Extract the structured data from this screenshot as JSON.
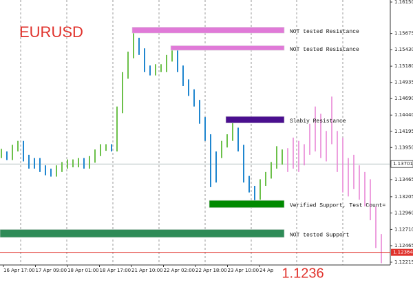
{
  "chart_data": {
    "type": "ohlc",
    "title": "EURUSD",
    "price_display": "1.1236",
    "ylim": [
      1.12173,
      1.16181
    ],
    "yticks": [
      {
        "value": 1.1615,
        "label": "1.16150"
      },
      1.15675,
      {
        "value": 1.1543,
        "label": "1.15430"
      },
      {
        "value": 1.1518,
        "label": "1.15180"
      },
      1.14935,
      {
        "value": 1.1469,
        "label": "1.14690"
      },
      {
        "value": 1.1444,
        "label": "1.14440"
      },
      1.14195,
      {
        "value": 1.1395,
        "label": "1.13950"
      },
      1.13465,
      1.13205,
      {
        "value": 1.1296,
        "label": "1.12960"
      },
      {
        "value": 1.1271,
        "label": "1.12710"
      },
      1.12465,
      1.12215
    ],
    "x_labels": [
      "16 Apr 17:00",
      "17 Apr 09:00",
      "18 Apr 01:00",
      "18 Apr 17:00",
      "21 Apr 10:00",
      "22 Apr 02:00",
      "22 Apr 18:00",
      "23 Apr 10:00",
      "24 Ap"
    ],
    "up_color": "#6cc04a",
    "down_color": "#1f86cf",
    "projection_color": "#e77fd2",
    "bars": {
      "high": [
        1.1393,
        1.1389,
        1.1399,
        1.1405,
        1.1405,
        1.1384,
        1.1379,
        1.1379,
        1.1368,
        1.1363,
        1.1368,
        1.1373,
        1.1377,
        1.1377,
        1.1379,
        1.1379,
        1.1382,
        1.1392,
        1.14,
        1.14,
        1.14,
        1.1457,
        1.1509,
        1.154,
        1.157,
        1.1561,
        1.1545,
        1.1519,
        1.1521,
        1.1521,
        1.1535,
        1.1545,
        1.1542,
        1.1519,
        1.1498,
        1.1483,
        1.1467,
        1.1441,
        1.1415,
        1.1389,
        1.1405,
        1.1415,
        1.1432,
        1.1425,
        1.1399,
        1.1352,
        1.1337,
        1.1347,
        1.1358,
        1.1373,
        1.1397,
        1.1392
      ],
      "low": [
        1.1379,
        1.1376,
        1.1376,
        1.1389,
        1.1374,
        1.1363,
        1.1363,
        1.1358,
        1.1353,
        1.1351,
        1.1351,
        1.1358,
        1.1363,
        1.1365,
        1.1365,
        1.1363,
        1.1363,
        1.1372,
        1.1382,
        1.139,
        1.1389,
        1.1389,
        1.1447,
        1.1499,
        1.153,
        1.1535,
        1.1509,
        1.1504,
        1.1504,
        1.1509,
        1.1509,
        1.1525,
        1.1509,
        1.1488,
        1.1473,
        1.1457,
        1.1431,
        1.1405,
        1.1335,
        1.1342,
        1.1379,
        1.1395,
        1.1405,
        1.1389,
        1.1342,
        1.1327,
        1.1312,
        1.1316,
        1.1337,
        1.1348,
        1.1363,
        1.1369
      ]
    },
    "projection": {
      "high": [
        1.1394,
        1.141,
        1.1405,
        1.14,
        1.1431,
        1.1457,
        1.1446,
        1.142,
        1.1472,
        1.142,
        1.141,
        1.1379,
        1.1384,
        1.1368,
        1.1358,
        1.1347,
        1.1306,
        1.1264
      ],
      "low": [
        1.1358,
        1.1363,
        1.1358,
        1.1368,
        1.1384,
        1.1389,
        1.1379,
        1.1374,
        1.14,
        1.1358,
        1.1327,
        1.1321,
        1.1332,
        1.1316,
        1.1306,
        1.1285,
        1.1243,
        1.122
      ]
    },
    "zones": [
      {
        "label": "NOT tested Resistance",
        "range": [
          1.1568,
          1.1577
        ],
        "start_bar": 24,
        "color": "#e07ad8"
      },
      {
        "label": "NOT tested Resistance",
        "range": [
          1.1542,
          1.1549
        ],
        "start_bar": 31,
        "color": "#e07ad8"
      },
      {
        "label": "Slabiy Resistance",
        "range": [
          1.1432,
          1.1442
        ],
        "start_bar": 41,
        "color": "#4a0f8f"
      },
      {
        "label": "Verified Support, Test Count=",
        "range": [
          1.1304,
          1.1315
        ],
        "start_bar": 38,
        "color": "#008a00"
      },
      {
        "label": "NOT tested Support",
        "range": [
          1.1259,
          1.1271
        ],
        "start_bar": 0,
        "color": "#2e8b57"
      }
    ],
    "current_price": 1.13701,
    "bid_price": 1.12364
  }
}
